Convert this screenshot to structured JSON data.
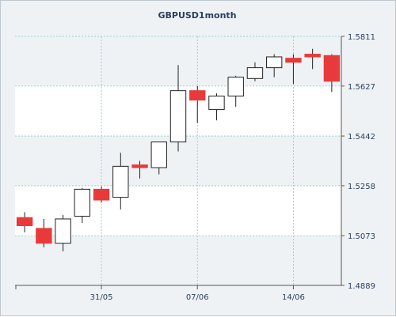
{
  "chart_data": {
    "type": "candlestick",
    "title": "GBPUSD1month",
    "y_ticks": [
      "1.5811",
      "1.5627",
      "1.5442",
      "1.5258",
      "1.5073",
      "1.4889"
    ],
    "ylim": [
      1.4889,
      1.5811
    ],
    "x_tick_labels": [
      "31/05",
      "07/06",
      "14/06"
    ],
    "x_tick_label_indices": [
      4,
      9,
      14
    ],
    "grid": true,
    "colors": {
      "up": "#ffffff",
      "down": "#e83a3a",
      "wick": "#222222",
      "grid": "#7fc9d3",
      "band": "#eef2f5"
    },
    "candles": [
      {
        "open": 1.514,
        "high": 1.516,
        "low": 1.5085,
        "close": 1.511
      },
      {
        "open": 1.51,
        "high": 1.5135,
        "low": 1.503,
        "close": 1.5045
      },
      {
        "open": 1.5045,
        "high": 1.515,
        "low": 1.5015,
        "close": 1.5135
      },
      {
        "open": 1.5145,
        "high": 1.525,
        "low": 1.512,
        "close": 1.5245
      },
      {
        "open": 1.5245,
        "high": 1.5255,
        "low": 1.5195,
        "close": 1.5205
      },
      {
        "open": 1.5215,
        "high": 1.538,
        "low": 1.517,
        "close": 1.533
      },
      {
        "open": 1.5335,
        "high": 1.535,
        "low": 1.5285,
        "close": 1.5325
      },
      {
        "open": 1.5325,
        "high": 1.542,
        "low": 1.53,
        "close": 1.542
      },
      {
        "open": 1.542,
        "high": 1.5705,
        "low": 1.5385,
        "close": 1.561
      },
      {
        "open": 1.561,
        "high": 1.5627,
        "low": 1.549,
        "close": 1.5575
      },
      {
        "open": 1.554,
        "high": 1.56,
        "low": 1.55,
        "close": 1.559
      },
      {
        "open": 1.559,
        "high": 1.5665,
        "low": 1.555,
        "close": 1.566
      },
      {
        "open": 1.5655,
        "high": 1.5715,
        "low": 1.5645,
        "close": 1.5695
      },
      {
        "open": 1.5695,
        "high": 1.5745,
        "low": 1.566,
        "close": 1.5735
      },
      {
        "open": 1.573,
        "high": 1.5745,
        "low": 1.5635,
        "close": 1.5715
      },
      {
        "open": 1.5745,
        "high": 1.5765,
        "low": 1.569,
        "close": 1.5735
      },
      {
        "open": 1.574,
        "high": 1.5745,
        "low": 1.5605,
        "close": 1.5645
      }
    ]
  }
}
